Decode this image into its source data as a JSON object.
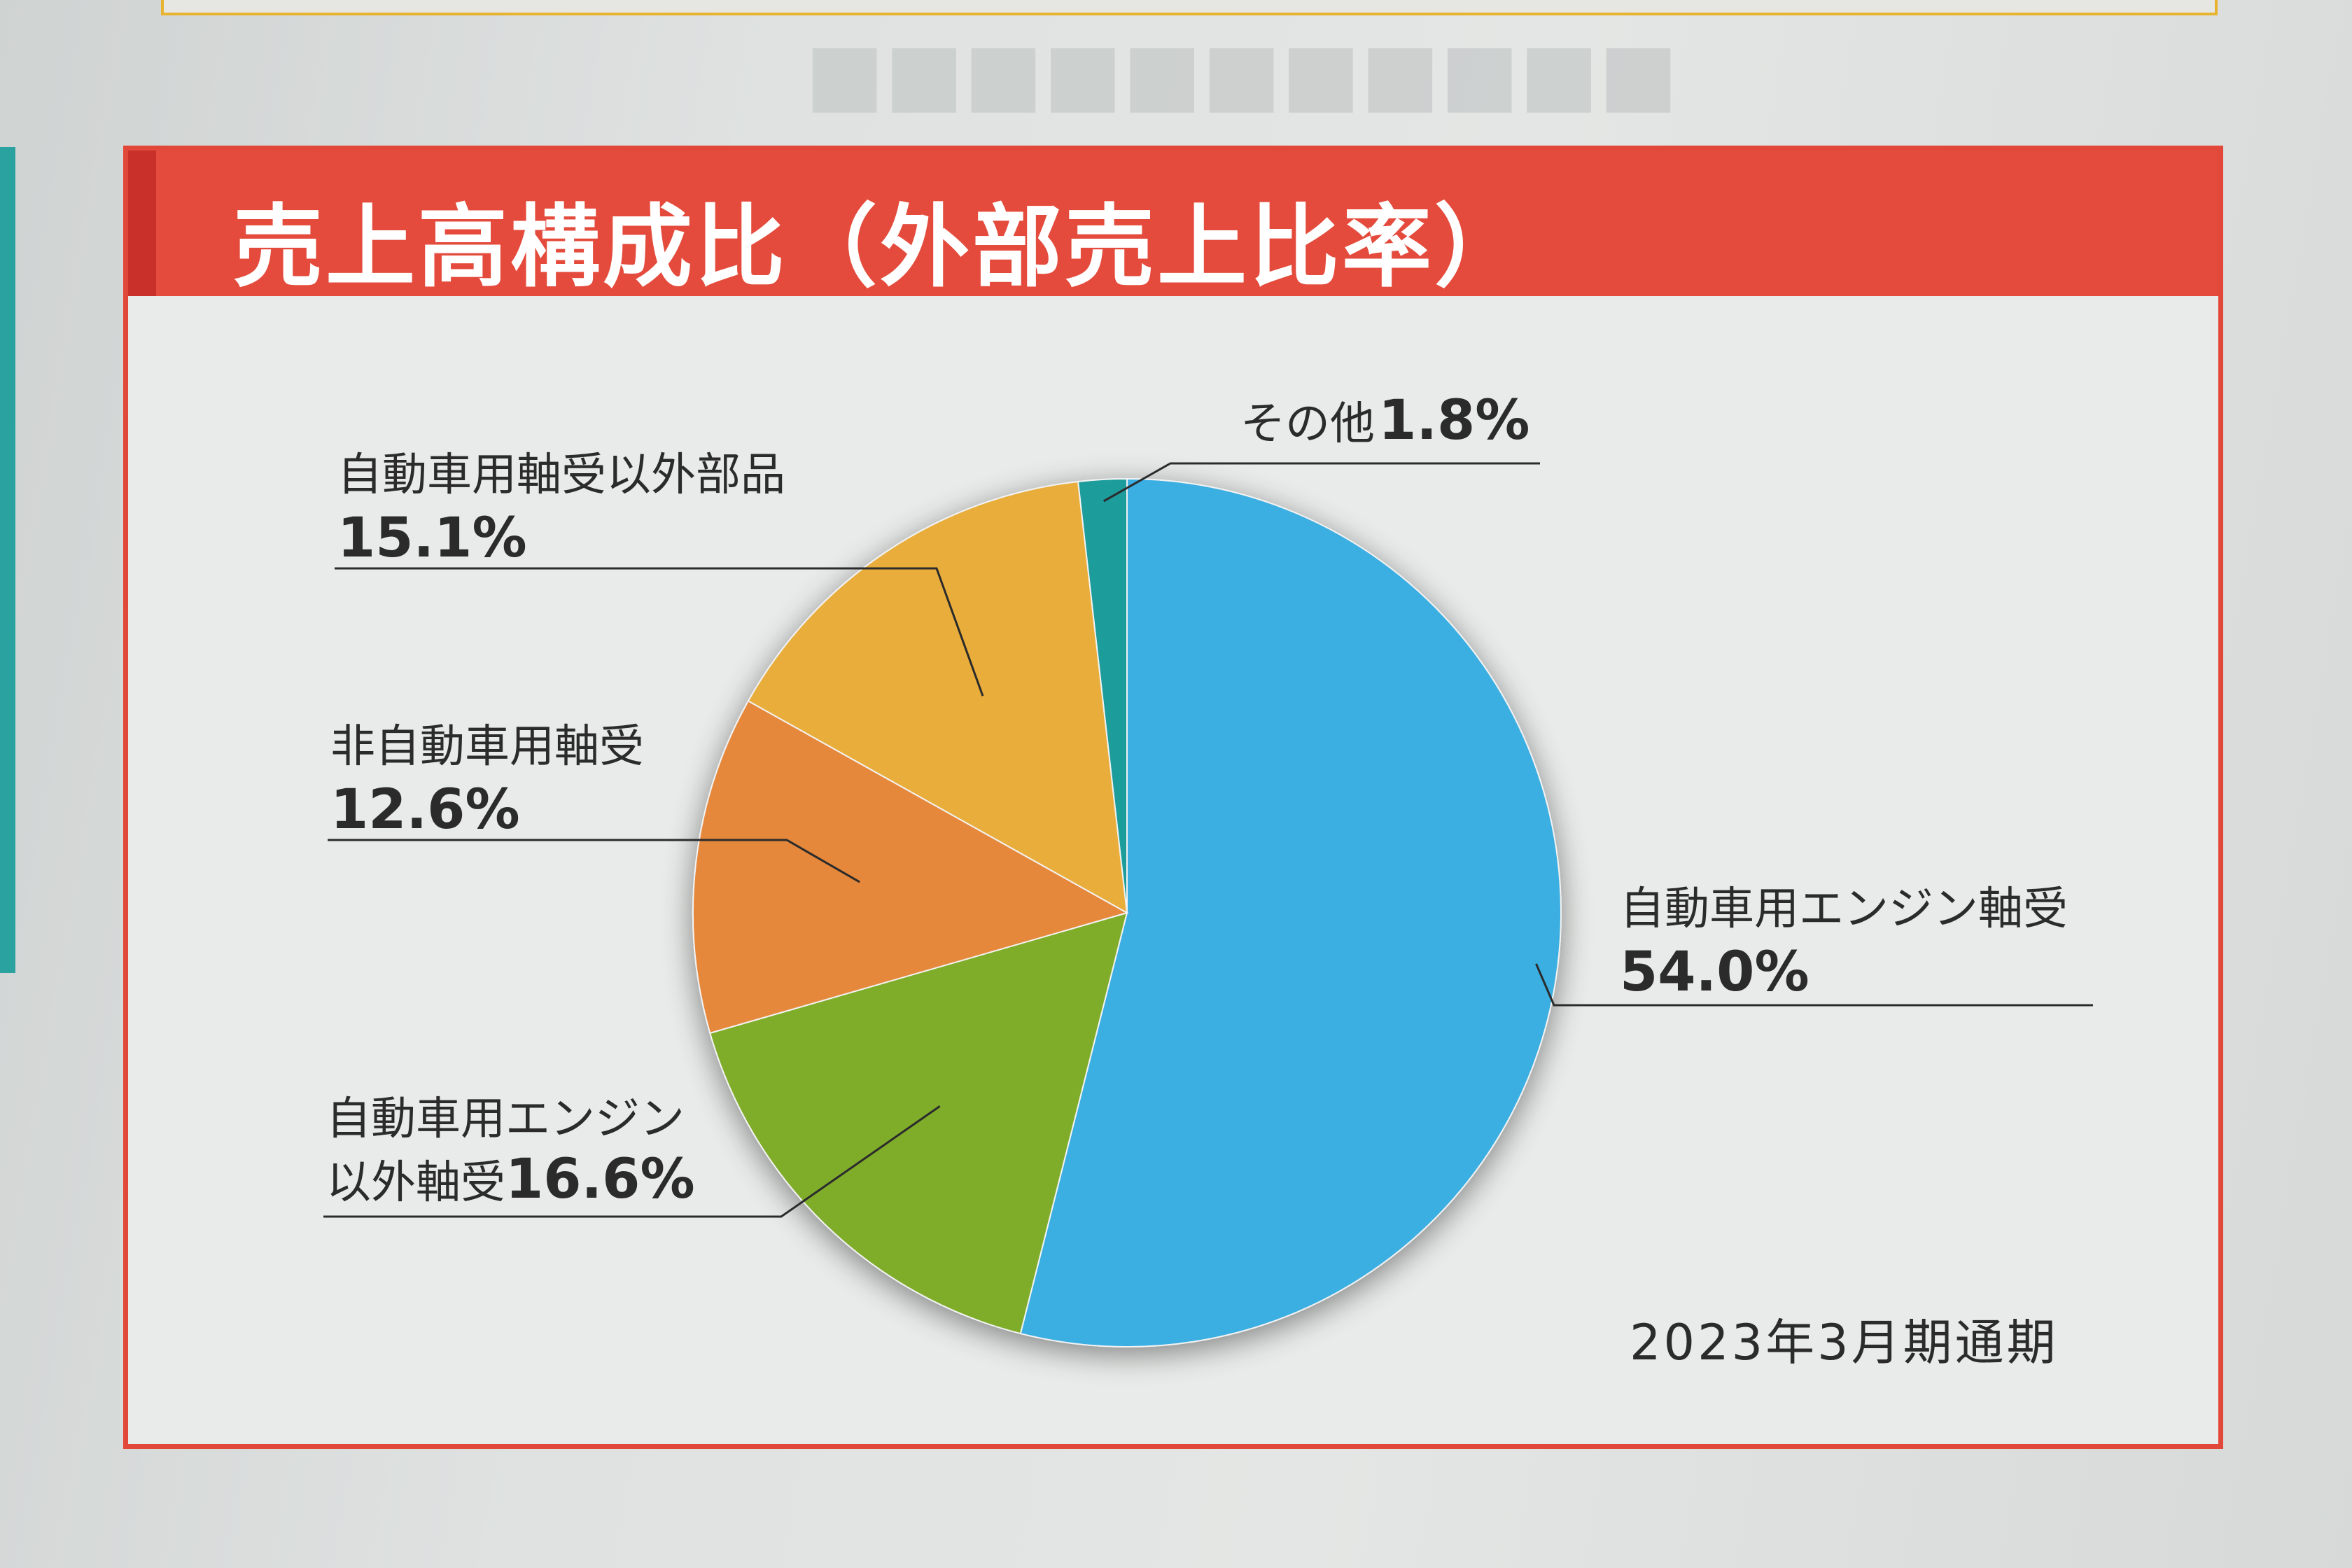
{
  "panel": {
    "title": "売上高構成比（外部売上比率）",
    "period": "2023年3月期通期"
  },
  "colors": {
    "header_red": "#e44b3c",
    "slice_1": "#3aaee2",
    "slice_2": "#7fad2b",
    "slice_3": "#e6883a",
    "slice_4": "#e9ad3b",
    "slice_5": "#1f9c9a"
  },
  "chart_data": {
    "type": "pie",
    "title": "売上高構成比（外部売上比率）",
    "unit": "%",
    "slices": [
      {
        "label": "自動車用エンジン軸受",
        "value": 54.0,
        "display": "54.0%"
      },
      {
        "label": "自動車用エンジン以外軸受",
        "label_line1": "自動車用エンジン",
        "label_line2": "以外軸受",
        "value": 16.6,
        "display": "16.6%"
      },
      {
        "label": "非自動車用軸受",
        "value": 12.6,
        "display": "12.6%"
      },
      {
        "label": "自動車用軸受以外部品",
        "value": 15.1,
        "display": "15.1%"
      },
      {
        "label": "その他",
        "value": 1.8,
        "display": "1.8%"
      }
    ],
    "start_angle": "12 o'clock",
    "direction": "clockwise",
    "legend": "none (leader-line labels)"
  }
}
